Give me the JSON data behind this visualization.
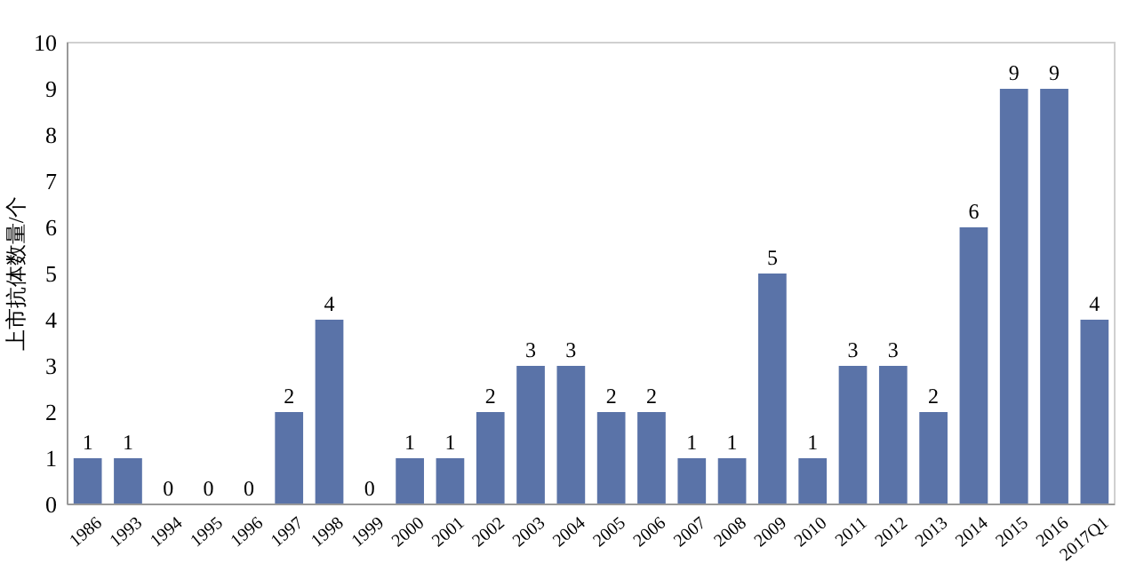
{
  "chart_data": {
    "type": "bar",
    "ylabel": "上市抗体数量/个",
    "categories": [
      "1986",
      "1993",
      "1994",
      "1995",
      "1996",
      "1997",
      "1998",
      "1999",
      "2000",
      "2001",
      "2002",
      "2003",
      "2004",
      "2005",
      "2006",
      "2007",
      "2008",
      "2009",
      "2010",
      "2011",
      "2012",
      "2013",
      "2014",
      "2015",
      "2016",
      "2017Q1"
    ],
    "values": [
      1,
      1,
      0,
      0,
      0,
      2,
      4,
      0,
      1,
      1,
      2,
      3,
      3,
      2,
      2,
      1,
      1,
      5,
      1,
      3,
      3,
      2,
      6,
      9,
      9,
      4
    ],
    "color": "#5a73a8",
    "ylim": [
      0,
      10
    ],
    "yticks": [
      0,
      1,
      2,
      3,
      4,
      5,
      6,
      7,
      8,
      9,
      10
    ],
    "data_labels": true,
    "grid": false
  }
}
